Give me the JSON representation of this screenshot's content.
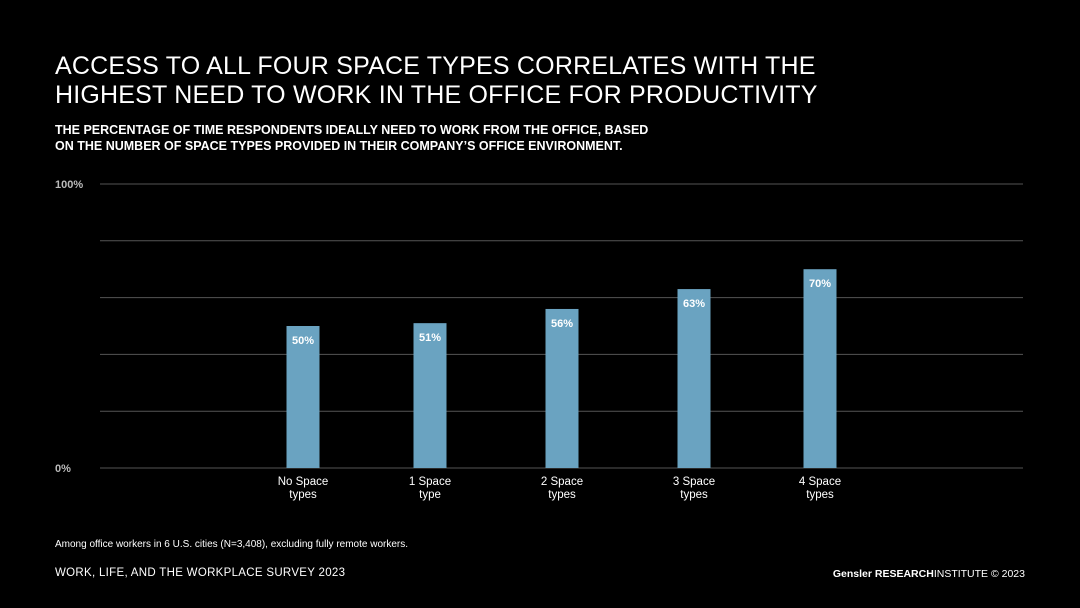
{
  "header": {
    "title_lines": [
      "ACCESS TO ALL FOUR SPACE TYPES CORRELATES WITH THE",
      "HIGHEST NEED TO WORK IN THE OFFICE FOR PRODUCTIVITY"
    ],
    "subtitle_lines": [
      "THE PERCENTAGE OF TIME RESPONDENTS IDEALLY NEED TO WORK FROM THE OFFICE, BASED",
      "ON THE NUMBER OF SPACE TYPES PROVIDED IN THEIR COMPANY’S OFFICE ENVIRONMENT."
    ]
  },
  "chart_data": {
    "type": "bar",
    "categories": [
      [
        "No Space",
        "types"
      ],
      [
        "1 Space",
        "type"
      ],
      [
        "2 Space",
        "types"
      ],
      [
        "3 Space",
        "types"
      ],
      [
        "4 Space",
        "types"
      ]
    ],
    "values": [
      50,
      51,
      56,
      63,
      70
    ],
    "value_labels": [
      "50%",
      "51%",
      "56%",
      "63%",
      "70%"
    ],
    "ylim": [
      0,
      100
    ],
    "y_tick_labels": [
      {
        "value": 100,
        "label": "100%"
      },
      {
        "value": 0,
        "label": "0%"
      }
    ],
    "gridlines": [
      0,
      20,
      40,
      60,
      80,
      100
    ],
    "grid": true,
    "bar_color": "#6aa3c1",
    "grid_color": "#555555"
  },
  "footnote": "Among office workers in 6 U.S. cities (N=3,408), excluding fully remote workers.",
  "footer": {
    "survey": "WORK, LIFE, AND THE WORKPLACE SURVEY 2023",
    "brand_regular": "Gensler",
    "brand_bold": "RESEARCH",
    "brand_suffix": "INSTITUTE © 2023"
  }
}
